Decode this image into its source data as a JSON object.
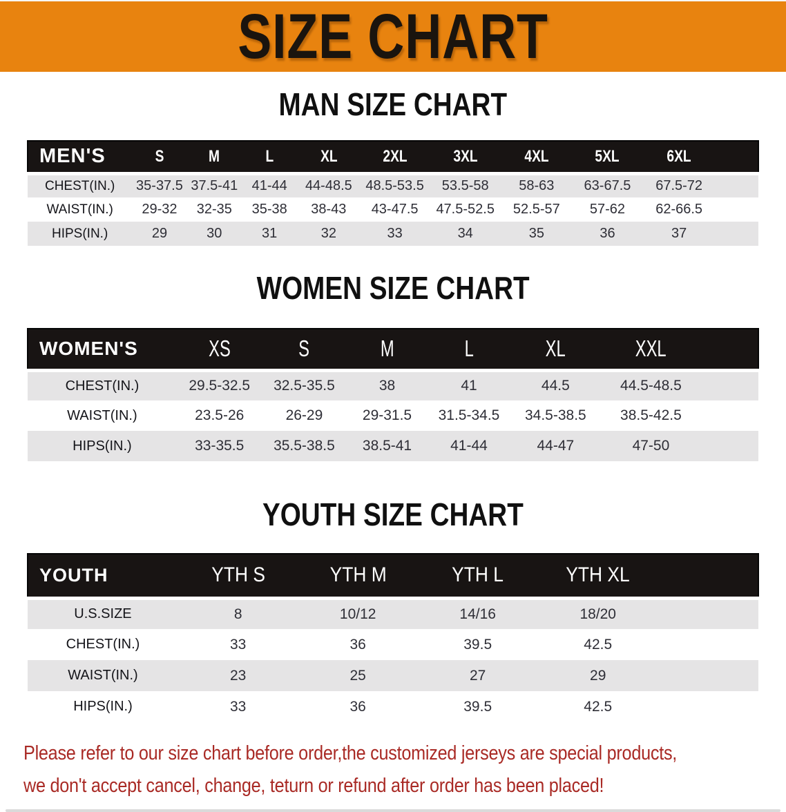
{
  "banner": {
    "title": "SIZE CHART"
  },
  "colors": {
    "banner_bg": "#e8830f",
    "header_bar_bg": "#181413",
    "row_stripe": "#e5e4e5",
    "note_red": "#a92a25"
  },
  "sections": [
    {
      "id": "men",
      "heading": "MAN SIZE CHART",
      "table": {
        "corner_label": "MEN'S",
        "columns": [
          "S",
          "M",
          "L",
          "XL",
          "2XL",
          "3XL",
          "4XL",
          "5XL",
          "6XL"
        ],
        "rows": [
          {
            "label": "CHEST(IN.)",
            "values": [
              "35-37.5",
              "37.5-41",
              "41-44",
              "44-48.5",
              "48.5-53.5",
              "53.5-58",
              "58-63",
              "63-67.5",
              "67.5-72"
            ]
          },
          {
            "label": "WAIST(IN.)",
            "values": [
              "29-32",
              "32-35",
              "35-38",
              "38-43",
              "43-47.5",
              "47.5-52.5",
              "52.5-57",
              "57-62",
              "62-66.5"
            ]
          },
          {
            "label": "HIPS(IN.)",
            "values": [
              "29",
              "30",
              "31",
              "32",
              "33",
              "34",
              "35",
              "36",
              "37"
            ]
          }
        ]
      }
    },
    {
      "id": "women",
      "heading": "WOMEN SIZE CHART",
      "table": {
        "corner_label": "WOMEN'S",
        "columns": [
          "XS",
          "S",
          "M",
          "L",
          "XL",
          "XXL"
        ],
        "rows": [
          {
            "label": "CHEST(IN.)",
            "values": [
              "29.5-32.5",
              "32.5-35.5",
              "38",
              "41",
              "44.5",
              "44.5-48.5"
            ]
          },
          {
            "label": "WAIST(IN.)",
            "values": [
              "23.5-26",
              "26-29",
              "29-31.5",
              "31.5-34.5",
              "34.5-38.5",
              "38.5-42.5"
            ]
          },
          {
            "label": "HIPS(IN.)",
            "values": [
              "33-35.5",
              "35.5-38.5",
              "38.5-41",
              "41-44",
              "44-47",
              "47-50"
            ]
          }
        ]
      }
    },
    {
      "id": "youth",
      "heading": "YOUTH SIZE CHART",
      "table": {
        "corner_label": "YOUTH",
        "columns": [
          "YTH S",
          "YTH M",
          "YTH L",
          "YTH XL"
        ],
        "rows": [
          {
            "label": "U.S.SIZE",
            "values": [
              "8",
              "10/12",
              "14/16",
              "18/20"
            ]
          },
          {
            "label": "CHEST(IN.)",
            "values": [
              "33",
              "36",
              "39.5",
              "42.5"
            ]
          },
          {
            "label": "WAIST(IN.)",
            "values": [
              "23",
              "25",
              "27",
              "29"
            ]
          },
          {
            "label": "HIPS(IN.)",
            "values": [
              "33",
              "36",
              "39.5",
              "42.5"
            ]
          }
        ]
      }
    }
  ],
  "footnote": {
    "lines": [
      "Please refer to our size chart before order,the customized jerseys are special products,",
      "we don't accept cancel, change, teturn or refund after order has been placed!"
    ]
  }
}
